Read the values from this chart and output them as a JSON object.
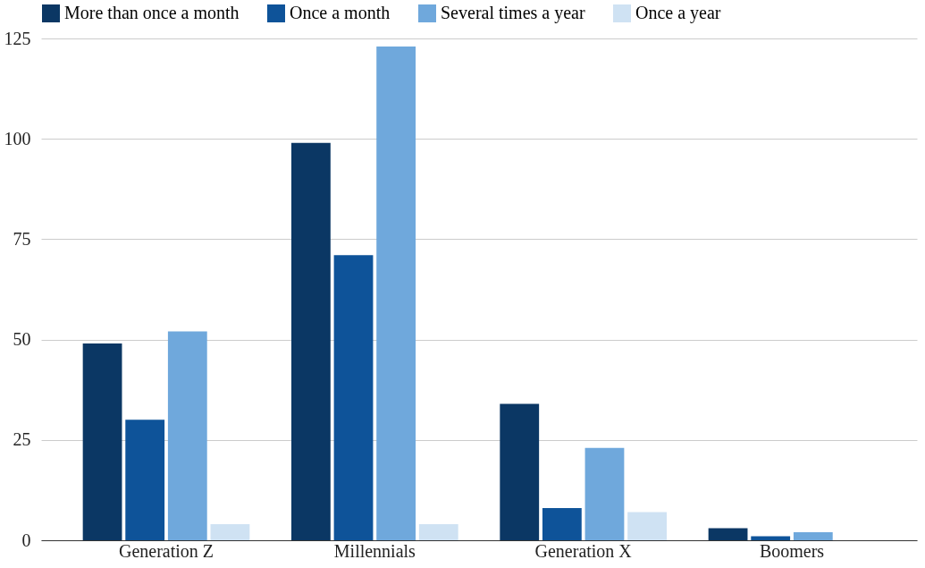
{
  "chart_data": {
    "type": "bar",
    "categories": [
      "Generation Z",
      "Millennials",
      "Generation X",
      "Boomers"
    ],
    "series": [
      {
        "name": "More than once a month",
        "color": "#0b3764",
        "values": [
          49,
          99,
          34,
          3
        ]
      },
      {
        "name": "Once a month",
        "color": "#0e5399",
        "values": [
          30,
          71,
          8,
          1
        ]
      },
      {
        "name": "Several times a year",
        "color": "#6fa8dc",
        "values": [
          52,
          123,
          23,
          2
        ]
      },
      {
        "name": "Once a year",
        "color": "#cfe2f3",
        "values": [
          4,
          4,
          7,
          0
        ]
      }
    ],
    "ylim": [
      0,
      125
    ],
    "yticks": [
      0,
      25,
      50,
      75,
      100,
      125
    ],
    "grid": "y",
    "legend": "top"
  }
}
